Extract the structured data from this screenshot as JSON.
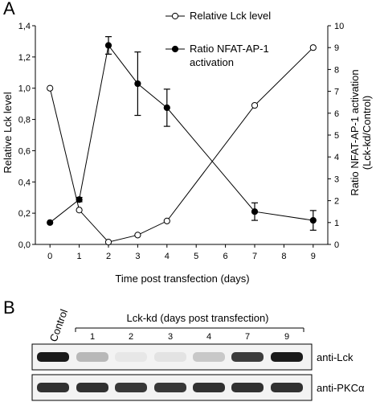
{
  "panel_a_letter": "A",
  "panel_b_letter": "B",
  "chart_data": {
    "type": "line",
    "xlabel": "Time post transfection (days)",
    "ylabel_left": "Relative Lck level",
    "ylabel_right_line1": "Ratio NFAT-AP-1 activation",
    "ylabel_right_line2": "(Lck-kd/Control)",
    "xlim": [
      -0.5,
      9.5
    ],
    "x_ticks": [
      0,
      1,
      2,
      3,
      4,
      5,
      6,
      7,
      8,
      9
    ],
    "ylim_left": [
      0,
      1.4
    ],
    "y_left_ticks": [
      "0,0",
      "0,2",
      "0,4",
      "0,6",
      "0,8",
      "1,0",
      "1,2",
      "1,4"
    ],
    "ylim_right": [
      0,
      10
    ],
    "y_right_ticks": [
      0,
      1,
      2,
      3,
      4,
      5,
      6,
      7,
      8,
      9,
      10
    ],
    "grid": false,
    "legend_position": "top-right",
    "series": [
      {
        "name": "Relative Lck level",
        "axis": "left",
        "marker": "open-circle",
        "x": [
          0,
          1,
          2,
          3,
          4,
          7,
          9
        ],
        "y": [
          1.0,
          0.22,
          0.015,
          0.06,
          0.15,
          0.89,
          1.26
        ]
      },
      {
        "name": "Ratio NFAT-AP-1 activation",
        "axis": "right",
        "marker": "filled-circle",
        "x": [
          0,
          1,
          2,
          3,
          4,
          7,
          9
        ],
        "y": [
          1.0,
          2.05,
          9.1,
          7.35,
          6.25,
          1.5,
          1.1
        ],
        "error": [
          0.0,
          0.1,
          0.4,
          1.45,
          0.85,
          0.4,
          0.45
        ]
      }
    ]
  },
  "blot": {
    "control_label": "Control",
    "group_label": "Lck-kd (days post transfection)",
    "lane_numbers": [
      "1",
      "2",
      "3",
      "4",
      "7",
      "9"
    ],
    "rows": [
      {
        "label": "anti-Lck",
        "intensities": [
          0.95,
          0.25,
          0.04,
          0.06,
          0.18,
          0.8,
          0.95
        ]
      },
      {
        "label": "anti-PKCα",
        "intensities": [
          0.85,
          0.85,
          0.82,
          0.82,
          0.85,
          0.85,
          0.85
        ]
      }
    ]
  }
}
